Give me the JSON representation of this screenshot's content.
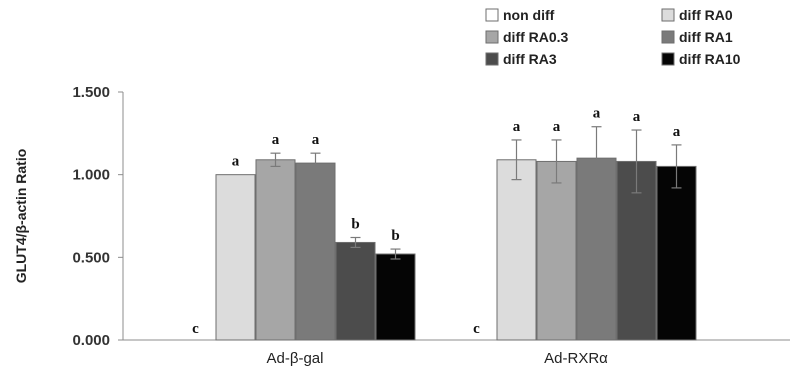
{
  "chart_data": {
    "type": "bar",
    "title": "",
    "xlabel": "",
    "ylabel": "GLUT4/β-actin Ratio",
    "ylim": [
      0,
      1.5
    ],
    "yticks": [
      "0.000",
      "0.500",
      "1.000",
      "1.500"
    ],
    "ytick_values": [
      0,
      0.5,
      1.0,
      1.5
    ],
    "grid": false,
    "legend_position": "top-right",
    "categories": [
      "Ad-β-gal",
      "Ad-RXRα"
    ],
    "series": [
      {
        "name": "non diff",
        "color": "#ffffff",
        "values": [
          0,
          0
        ],
        "errors": [
          0,
          0
        ],
        "labels": [
          "c",
          "c"
        ]
      },
      {
        "name": "diff RA0",
        "color": "#dcdcdc",
        "values": [
          1.0,
          1.09
        ],
        "errors": [
          0,
          0.12
        ],
        "labels": [
          "a",
          "a"
        ]
      },
      {
        "name": "diff RA0.3",
        "color": "#a6a6a6",
        "values": [
          1.09,
          1.08
        ],
        "errors": [
          0.04,
          0.13
        ],
        "labels": [
          "a",
          "a"
        ]
      },
      {
        "name": "diff RA1",
        "color": "#7a7a7a",
        "values": [
          1.07,
          1.1
        ],
        "errors": [
          0.06,
          0.19
        ],
        "labels": [
          "a",
          "a"
        ]
      },
      {
        "name": "diff RA3",
        "color": "#4c4c4c",
        "values": [
          0.59,
          1.08
        ],
        "errors": [
          0.03,
          0.19
        ],
        "labels": [
          "b",
          "a"
        ]
      },
      {
        "name": "diff RA10",
        "color": "#050505",
        "values": [
          0.52,
          1.05
        ],
        "errors": [
          0.03,
          0.13
        ],
        "labels": [
          "b",
          "a"
        ]
      }
    ]
  }
}
